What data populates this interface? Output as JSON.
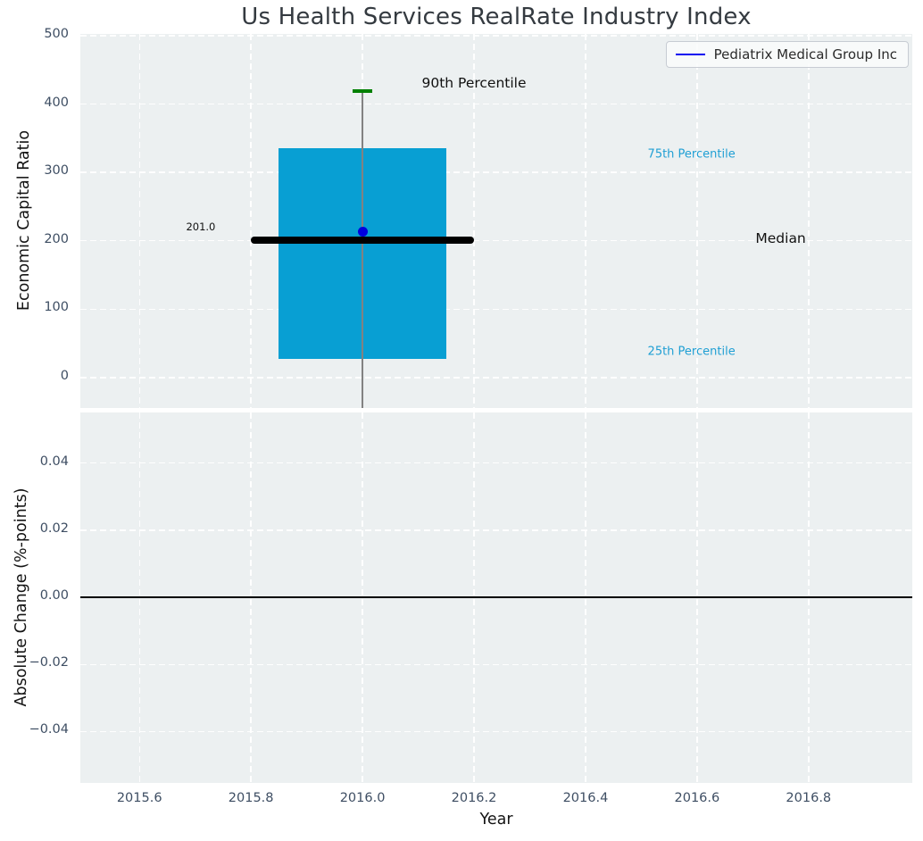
{
  "chart_data": {
    "type": "box",
    "title": "Us Health Services RealRate Industry Index",
    "legend": {
      "label": "Pediatrix Medical Group Inc",
      "line_color": "#0707f0",
      "position": "upper right"
    },
    "colors": {
      "box_fill": "#089fd3",
      "median_line": "#000000",
      "whisker_line": "#828282",
      "p90_cap": "#008000",
      "company_point": "#0000dd",
      "percentile_text": "#1f9fd4",
      "annotation_text": "#111111",
      "axes_background": "#ecf0f1",
      "grid": "#ffffff",
      "tick_text": "#3e4e63",
      "zero_line": "#000000"
    },
    "subplots": [
      {
        "name": "economic-capital-ratio",
        "ylabel": "Economic Capital Ratio",
        "xlabel": "",
        "grid": true,
        "xlim": [
          2015.494,
          2016.986
        ],
        "ylim": [
          -44.5,
          502.5
        ],
        "yticks": [
          {
            "v": 0,
            "label": "0"
          },
          {
            "v": 100,
            "label": "100"
          },
          {
            "v": 200,
            "label": "200"
          },
          {
            "v": 300,
            "label": "300"
          },
          {
            "v": 400,
            "label": "400"
          },
          {
            "v": 500,
            "label": "500"
          }
        ],
        "xticks": [
          {
            "v": 2015.6,
            "label": "2015.6"
          },
          {
            "v": 2015.8,
            "label": "2015.8"
          },
          {
            "v": 2016.0,
            "label": "2016.0"
          },
          {
            "v": 2016.2,
            "label": "2016.2"
          },
          {
            "v": 2016.4,
            "label": "2016.4"
          },
          {
            "v": 2016.6,
            "label": "2016.6"
          },
          {
            "v": 2016.8,
            "label": "2016.8"
          }
        ],
        "show_xtick_labels": false,
        "box": {
          "x_center": 2016.0,
          "x_left": 2015.85,
          "x_right": 2016.15,
          "q1": 27,
          "median": 201.0,
          "q3": 335,
          "p90": 419,
          "median_x_left": 2015.8,
          "median_x_right": 2016.2,
          "cap_halfwidth": 0.018,
          "lower_whisker_clipped": true
        },
        "company_point": {
          "name": "Pediatrix Medical Group Inc",
          "x": 2016.0,
          "y": 213
        },
        "annotations": [
          {
            "text": "90th Percentile",
            "x": 2016.2,
            "y": 431,
            "color": "#111111",
            "size": 15.5
          },
          {
            "text": "75th Percentile",
            "x": 2016.59,
            "y": 326,
            "color": "#1f9fd4",
            "size": 13
          },
          {
            "text": "Median",
            "x": 2016.75,
            "y": 204,
            "color": "#111111",
            "size": 15.5
          },
          {
            "text": "25th Percentile",
            "x": 2016.59,
            "y": 38,
            "color": "#1f9fd4",
            "size": 13
          },
          {
            "text": "201.0",
            "x": 2015.71,
            "y": 221,
            "color": "#111111",
            "size": 11.5
          }
        ]
      },
      {
        "name": "absolute-change",
        "ylabel": "Absolute Change (%-points)",
        "xlabel": "Year",
        "grid": true,
        "xlim": [
          2015.494,
          2016.986
        ],
        "ylim": [
          -0.0553,
          0.0551
        ],
        "yticks": [
          {
            "v": 0.04,
            "label": "0.04"
          },
          {
            "v": 0.02,
            "label": "0.02"
          },
          {
            "v": 0.0,
            "label": "0.00"
          },
          {
            "v": -0.02,
            "label": "−0.02"
          },
          {
            "v": -0.04,
            "label": "−0.04"
          }
        ],
        "xticks": [
          {
            "v": 2015.6,
            "label": "2015.6"
          },
          {
            "v": 2015.8,
            "label": "2015.8"
          },
          {
            "v": 2016.0,
            "label": "2016.0"
          },
          {
            "v": 2016.2,
            "label": "2016.2"
          },
          {
            "v": 2016.4,
            "label": "2016.4"
          },
          {
            "v": 2016.6,
            "label": "2016.6"
          },
          {
            "v": 2016.8,
            "label": "2016.8"
          }
        ],
        "show_xtick_labels": true,
        "zero_line": 0.0
      }
    ]
  }
}
